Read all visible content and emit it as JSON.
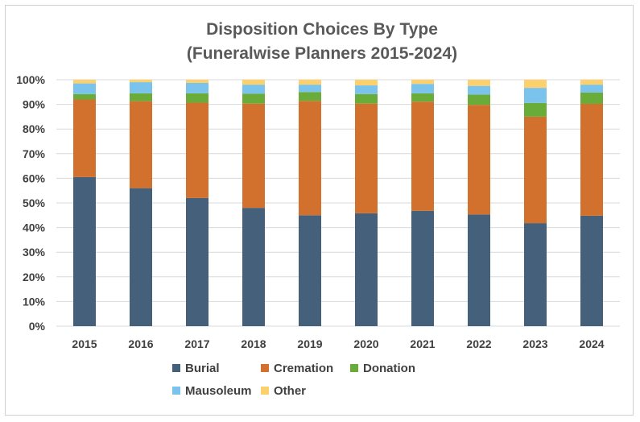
{
  "chart_data": {
    "type": "bar",
    "stacked": true,
    "title_lines": [
      "Disposition Choices By Type",
      "(Funeralwise Planners 2015-2024)"
    ],
    "categories": [
      "2015",
      "2016",
      "2017",
      "2018",
      "2019",
      "2020",
      "2021",
      "2022",
      "2023",
      "2024"
    ],
    "series": [
      {
        "name": "Burial",
        "color": "#44607a",
        "values": [
          60.5,
          56,
          52,
          48,
          45,
          45.8,
          46.8,
          45.3,
          41.8,
          44.8
        ]
      },
      {
        "name": "Cremation",
        "color": "#d2702d",
        "values": [
          31.5,
          35.3,
          38.7,
          42.3,
          46.4,
          44.5,
          44.3,
          44.5,
          43.2,
          45.4
        ]
      },
      {
        "name": "Donation",
        "color": "#6aac3a",
        "values": [
          2.2,
          3.2,
          3.8,
          4.0,
          3.6,
          3.9,
          3.4,
          4.2,
          5.6,
          4.6
        ]
      },
      {
        "name": "Mausoleum",
        "color": "#79c3ec",
        "values": [
          4.3,
          4.5,
          4.2,
          3.7,
          3.0,
          3.5,
          3.8,
          3.5,
          6.1,
          3.2
        ]
      },
      {
        "name": "Other",
        "color": "#fcd06c",
        "values": [
          1.5,
          1.0,
          1.3,
          2.0,
          2.0,
          2.3,
          1.7,
          2.5,
          3.3,
          2.0
        ]
      }
    ],
    "ylim": [
      0,
      100
    ],
    "yticks": [
      "0%",
      "10%",
      "20%",
      "30%",
      "40%",
      "50%",
      "60%",
      "70%",
      "80%",
      "90%",
      "100%"
    ],
    "grid": true,
    "legend_position": "bottom"
  }
}
